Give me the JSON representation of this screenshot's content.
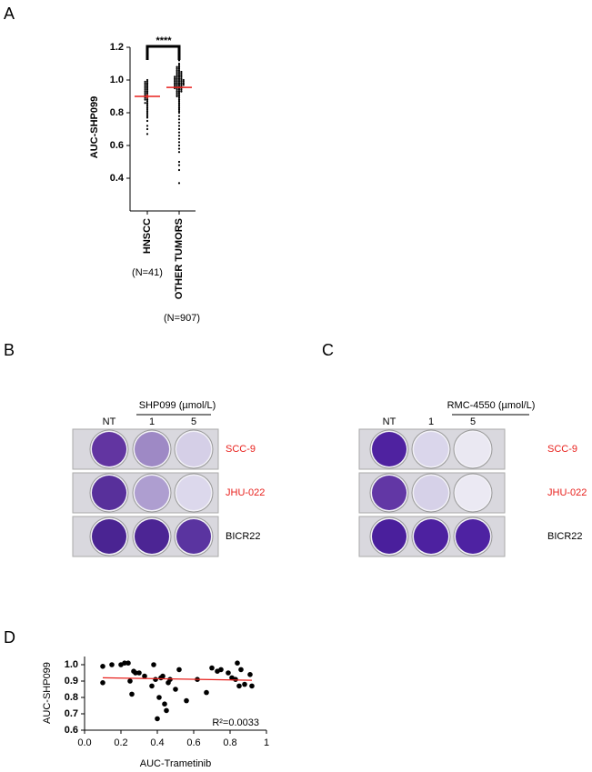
{
  "panel_labels": [
    "A",
    "B",
    "C",
    "D"
  ],
  "chart_data": [
    {
      "type": "strip",
      "ylabel": "AUC-SHP099",
      "categories": [
        "HNSCC",
        "OTHER TUMORS"
      ],
      "category_notes": [
        "(N=41)",
        "(N=907)"
      ],
      "values": [
        [
          1.0,
          0.99,
          0.99,
          0.98,
          0.98,
          0.97,
          0.97,
          0.96,
          0.96,
          0.95,
          0.95,
          0.94,
          0.94,
          0.93,
          0.93,
          0.92,
          0.92,
          0.91,
          0.91,
          0.9,
          0.9,
          0.89,
          0.89,
          0.88,
          0.88,
          0.87,
          0.86,
          0.86,
          0.85,
          0.84,
          0.83,
          0.82,
          0.81,
          0.8,
          0.79,
          0.78,
          0.77,
          0.75,
          0.72,
          0.7,
          0.67
        ],
        [
          1.12,
          1.1,
          1.09,
          1.08,
          1.08,
          1.07,
          1.07,
          1.06,
          1.06,
          1.05,
          1.05,
          1.05,
          1.04,
          1.04,
          1.04,
          1.03,
          1.03,
          1.03,
          1.02,
          1.02,
          1.02,
          1.02,
          1.01,
          1.01,
          1.01,
          1.01,
          1.0,
          1.0,
          1.0,
          1.0,
          1.0,
          0.99,
          0.99,
          0.99,
          0.99,
          0.99,
          0.98,
          0.98,
          0.98,
          0.98,
          0.98,
          0.97,
          0.97,
          0.97,
          0.97,
          0.97,
          0.96,
          0.96,
          0.96,
          0.96,
          0.95,
          0.95,
          0.95,
          0.95,
          0.94,
          0.94,
          0.94,
          0.93,
          0.93,
          0.93,
          0.92,
          0.92,
          0.91,
          0.91,
          0.9,
          0.9,
          0.89,
          0.88,
          0.87,
          0.86,
          0.85,
          0.84,
          0.83,
          0.82,
          0.81,
          0.8,
          0.78,
          0.76,
          0.74,
          0.72,
          0.7,
          0.68,
          0.66,
          0.64,
          0.62,
          0.6,
          0.58,
          0.56,
          0.5,
          0.48,
          0.45,
          0.37
        ]
      ],
      "color": "#000000",
      "means": [
        0.9,
        0.955
      ],
      "errors": [
        0.012,
        0.004
      ],
      "mean_color": "#e8211d",
      "annotation": "****",
      "ylim": [
        0.2,
        1.2
      ],
      "yticks": [
        0.4,
        0.6,
        0.8,
        {
          "value": 1,
          "label": "1.0"
        },
        1.2
      ]
    },
    {
      "type": "scatter",
      "xlabel": "AUC-Trametinib",
      "ylabel": "AUC-SHP099",
      "x": [
        0.1,
        0.1,
        0.15,
        0.2,
        0.22,
        0.24,
        0.25,
        0.26,
        0.27,
        0.28,
        0.3,
        0.33,
        0.37,
        0.38,
        0.39,
        0.4,
        0.41,
        0.42,
        0.43,
        0.44,
        0.45,
        0.46,
        0.47,
        0.5,
        0.52,
        0.56,
        0.62,
        0.67,
        0.7,
        0.73,
        0.75,
        0.79,
        0.81,
        0.83,
        0.84,
        0.85,
        0.86,
        0.88,
        0.91,
        0.92
      ],
      "y": [
        0.99,
        0.89,
        1.0,
        1.0,
        1.01,
        1.01,
        0.9,
        0.82,
        0.96,
        0.95,
        0.95,
        0.93,
        0.87,
        1.0,
        0.91,
        0.67,
        0.8,
        0.92,
        0.93,
        0.76,
        0.72,
        0.89,
        0.91,
        0.85,
        0.97,
        0.78,
        0.91,
        0.83,
        0.98,
        0.96,
        0.97,
        0.95,
        0.92,
        0.91,
        1.01,
        0.87,
        0.97,
        0.88,
        0.94,
        0.87
      ],
      "color": "#000000",
      "fit": {
        "x": [
          0.1,
          0.92
        ],
        "y": [
          0.92,
          0.905
        ],
        "color": "#e8211d"
      },
      "annotation": "R²=0.0033",
      "xlim": [
        0,
        1
      ],
      "ylim": [
        0.6,
        1.05
      ],
      "xticks": [
        {
          "value": 0,
          "label": "0.0"
        },
        0.2,
        0.4,
        0.6,
        0.8,
        1
      ],
      "yticks": [
        0.6,
        0.7,
        0.8,
        0.9,
        {
          "value": 1,
          "label": "1.0"
        }
      ]
    }
  ],
  "plates": [
    {
      "title": "SHP099 (µmol/L)",
      "columns": [
        "NT",
        "1",
        "5"
      ],
      "rows": [
        {
          "label": "SCC-9",
          "color": "#e8211d"
        },
        {
          "label": "JHU-022",
          "color": "#e8211d"
        },
        {
          "label": "BICR22",
          "color": "#000000"
        }
      ]
    },
    {
      "title": "RMC-4550 (µmol/L)",
      "columns": [
        "NT",
        "1",
        "5"
      ],
      "rows": [
        {
          "label": "SCC-9",
          "color": "#e8211d"
        },
        {
          "label": "JHU-022",
          "color": "#e8211d"
        },
        {
          "label": "BICR22",
          "color": "#000000"
        }
      ]
    }
  ]
}
